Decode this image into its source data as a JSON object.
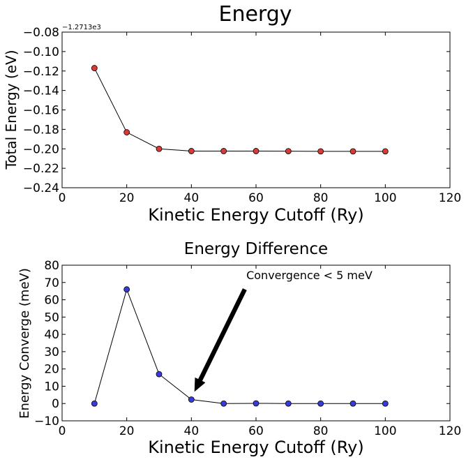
{
  "chart_data": [
    {
      "type": "line",
      "title": "Energy",
      "xlabel": "Kinetic Energy Cutoff (Ry)",
      "ylabel": "Total Energy (eV)",
      "offset_text": "−1.2713e3",
      "xlim": [
        0,
        120
      ],
      "ylim": [
        -0.24,
        -0.08
      ],
      "xticks": [
        0,
        20,
        40,
        60,
        80,
        100,
        120
      ],
      "xtick_labels": [
        "0",
        "20",
        "40",
        "60",
        "80",
        "100",
        "120"
      ],
      "yticks": [
        -0.24,
        -0.22,
        -0.2,
        -0.18,
        -0.16,
        -0.14,
        -0.12,
        -0.1,
        -0.08
      ],
      "ytick_labels": [
        "−0.24",
        "−0.22",
        "−0.20",
        "−0.18",
        "−0.16",
        "−0.14",
        "−0.12",
        "−0.10",
        "−0.08"
      ],
      "grid": false,
      "series": [
        {
          "x": [
            10,
            20,
            30,
            40,
            50,
            60,
            70,
            80,
            90,
            100
          ],
          "y": [
            -0.117,
            -0.183,
            -0.2,
            -0.2023,
            -0.2023,
            -0.2023,
            -0.2024,
            -0.2026,
            -0.2026,
            -0.2026
          ],
          "marker_color": "#d83a3a",
          "line_color": "#000000"
        }
      ]
    },
    {
      "type": "line",
      "title": "Energy Difference",
      "xlabel": "Kinetic Energy Cutoff (Ry)",
      "ylabel": "Energy Converge (meV)",
      "xlim": [
        0,
        120
      ],
      "ylim": [
        -10,
        80
      ],
      "xticks": [
        0,
        20,
        40,
        60,
        80,
        100,
        120
      ],
      "xtick_labels": [
        "0",
        "20",
        "40",
        "60",
        "80",
        "100",
        "120"
      ],
      "yticks": [
        -10,
        0,
        10,
        20,
        30,
        40,
        50,
        60,
        70,
        80
      ],
      "ytick_labels": [
        "−10",
        "0",
        "10",
        "20",
        "30",
        "40",
        "50",
        "60",
        "70",
        "80"
      ],
      "grid": false,
      "series": [
        {
          "x": [
            10,
            20,
            30,
            40,
            50,
            60,
            70,
            80,
            90,
            100
          ],
          "y": [
            0,
            66,
            17,
            2.3,
            0,
            0.1,
            0,
            0,
            0,
            0
          ],
          "marker_color": "#3a3ad8",
          "line_color": "#000000"
        }
      ],
      "annotation": {
        "text": "Convergence < 5 meV",
        "text_x": 57,
        "text_y": 72,
        "arrow_from_x": 56.5,
        "arrow_from_y": 66,
        "arrow_to_x": 41,
        "arrow_to_y": 7
      }
    }
  ]
}
